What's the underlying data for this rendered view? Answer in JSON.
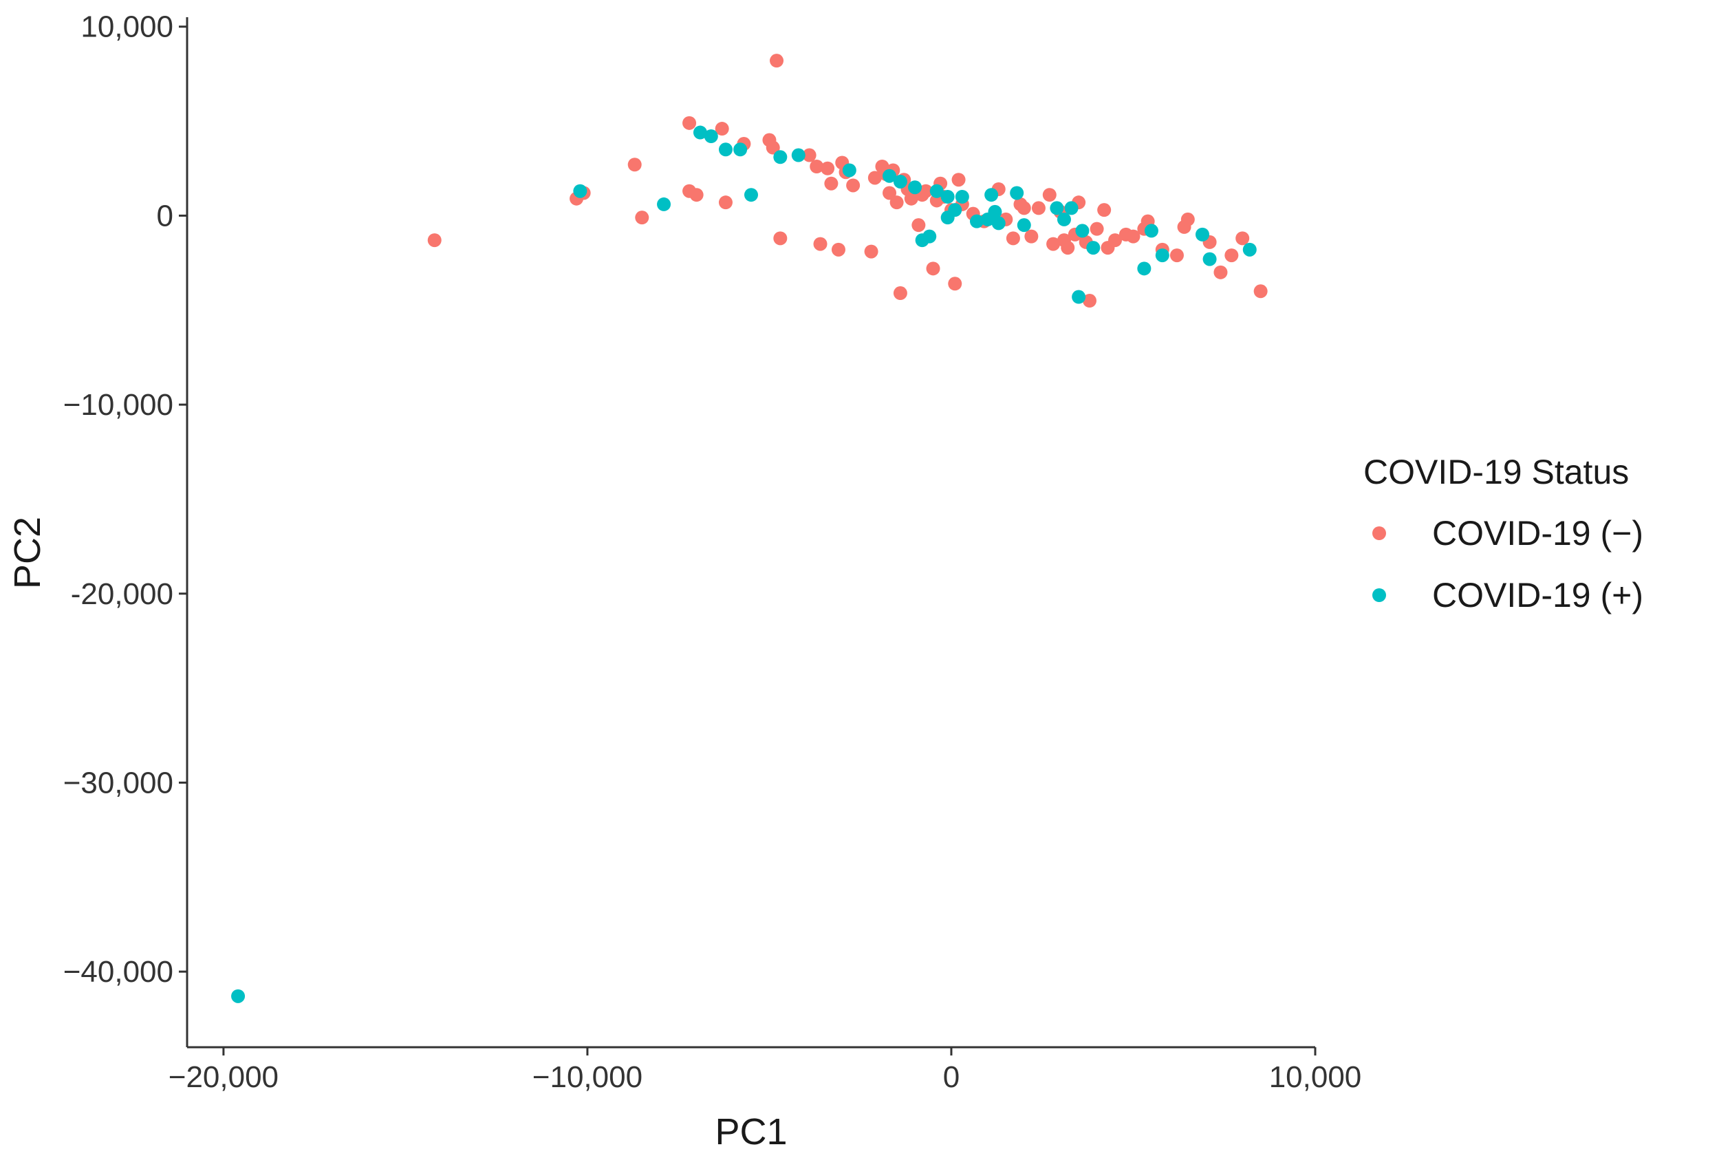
{
  "chart_data": {
    "type": "scatter",
    "title": "",
    "xlabel": "PC1",
    "ylabel": "PC2",
    "xlim": [
      -21000,
      10000
    ],
    "ylim": [
      -44000,
      10500
    ],
    "x_ticks": [
      -20000,
      -10000,
      0,
      10000
    ],
    "x_tick_labels": [
      "−20,000",
      "−10,000",
      "0",
      "10,000"
    ],
    "y_ticks": [
      10000,
      0,
      -10000,
      -20000,
      -30000,
      -40000
    ],
    "y_tick_labels": [
      "10,000",
      "0",
      "−10,000",
      "-20,000",
      "−30,000",
      "−40,000"
    ],
    "grid": false,
    "legend_title": "COVID-19 Status",
    "legend_position": "right",
    "series": [
      {
        "name": "COVID-19 (−)",
        "color": "#F8766D",
        "points": [
          [
            -14200,
            -1300
          ],
          [
            -10300,
            900
          ],
          [
            -10100,
            1200
          ],
          [
            -8700,
            2700
          ],
          [
            -8500,
            -100
          ],
          [
            -7200,
            4900
          ],
          [
            -7200,
            1300
          ],
          [
            -7000,
            1100
          ],
          [
            -6300,
            4600
          ],
          [
            -6200,
            700
          ],
          [
            -5700,
            3800
          ],
          [
            -5000,
            4000
          ],
          [
            -4900,
            3600
          ],
          [
            -4800,
            8200
          ],
          [
            -4700,
            -1200
          ],
          [
            -3900,
            3200
          ],
          [
            -3700,
            2600
          ],
          [
            -3600,
            -1500
          ],
          [
            -3400,
            2500
          ],
          [
            -3300,
            1700
          ],
          [
            -3100,
            -1800
          ],
          [
            -3000,
            2800
          ],
          [
            -2900,
            2300
          ],
          [
            -2700,
            1600
          ],
          [
            -2200,
            -1900
          ],
          [
            -2100,
            2000
          ],
          [
            -1900,
            2600
          ],
          [
            -1800,
            2200
          ],
          [
            -1700,
            1200
          ],
          [
            -1600,
            2400
          ],
          [
            -1500,
            700
          ],
          [
            -1400,
            -4100
          ],
          [
            -1300,
            1900
          ],
          [
            -1200,
            1400
          ],
          [
            -1100,
            900
          ],
          [
            -900,
            -500
          ],
          [
            -800,
            1100
          ],
          [
            -700,
            1300
          ],
          [
            -500,
            -2800
          ],
          [
            -400,
            800
          ],
          [
            -300,
            1700
          ],
          [
            -200,
            1000
          ],
          [
            0,
            300
          ],
          [
            100,
            -3600
          ],
          [
            200,
            1900
          ],
          [
            300,
            600
          ],
          [
            600,
            100
          ],
          [
            900,
            -300
          ],
          [
            1300,
            1400
          ],
          [
            1500,
            -200
          ],
          [
            1700,
            -1200
          ],
          [
            1900,
            600
          ],
          [
            2000,
            400
          ],
          [
            2200,
            -1100
          ],
          [
            2400,
            400
          ],
          [
            2700,
            1100
          ],
          [
            2800,
            -1500
          ],
          [
            3000,
            200
          ],
          [
            3100,
            -1300
          ],
          [
            3200,
            -1700
          ],
          [
            3400,
            -1000
          ],
          [
            3500,
            700
          ],
          [
            3700,
            -1400
          ],
          [
            3800,
            -4500
          ],
          [
            4000,
            -700
          ],
          [
            4200,
            300
          ],
          [
            4300,
            -1700
          ],
          [
            4500,
            -1300
          ],
          [
            4800,
            -1000
          ],
          [
            5000,
            -1100
          ],
          [
            5300,
            -700
          ],
          [
            5400,
            -300
          ],
          [
            5800,
            -1800
          ],
          [
            6200,
            -2100
          ],
          [
            6400,
            -600
          ],
          [
            6500,
            -200
          ],
          [
            7100,
            -1400
          ],
          [
            7400,
            -3000
          ],
          [
            7700,
            -2100
          ],
          [
            8000,
            -1200
          ],
          [
            8500,
            -4000
          ]
        ]
      },
      {
        "name": "COVID-19 (+)",
        "color": "#00BFC4",
        "points": [
          [
            -19600,
            -41300
          ],
          [
            -10200,
            1300
          ],
          [
            -7900,
            600
          ],
          [
            -6900,
            4400
          ],
          [
            -6600,
            4200
          ],
          [
            -6200,
            3500
          ],
          [
            -5800,
            3500
          ],
          [
            -5500,
            1100
          ],
          [
            -4700,
            3100
          ],
          [
            -4200,
            3200
          ],
          [
            -2800,
            2400
          ],
          [
            -1700,
            2100
          ],
          [
            -1400,
            1800
          ],
          [
            -1000,
            1500
          ],
          [
            -800,
            -1300
          ],
          [
            -600,
            -1100
          ],
          [
            -400,
            1300
          ],
          [
            -100,
            1000
          ],
          [
            -100,
            -100
          ],
          [
            100,
            300
          ],
          [
            300,
            1000
          ],
          [
            700,
            -300
          ],
          [
            1000,
            -200
          ],
          [
            1100,
            1100
          ],
          [
            1200,
            200
          ],
          [
            1300,
            -400
          ],
          [
            1800,
            1200
          ],
          [
            2000,
            -500
          ],
          [
            2900,
            400
          ],
          [
            3100,
            -200
          ],
          [
            3300,
            400
          ],
          [
            3500,
            -4300
          ],
          [
            3600,
            -800
          ],
          [
            3900,
            -1700
          ],
          [
            5300,
            -2800
          ],
          [
            5500,
            -800
          ],
          [
            5800,
            -2100
          ],
          [
            6900,
            -1000
          ],
          [
            7100,
            -2300
          ],
          [
            8200,
            -1800
          ]
        ]
      }
    ]
  }
}
